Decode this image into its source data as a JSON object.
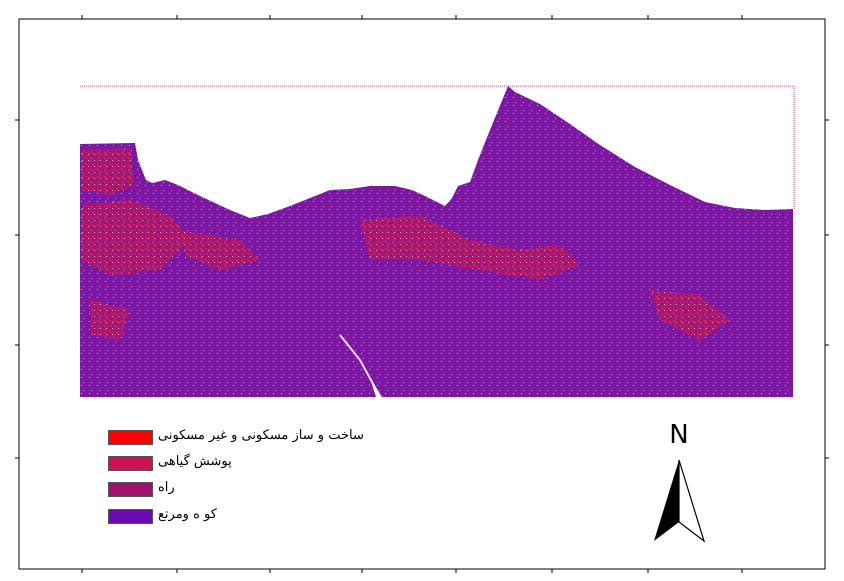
{
  "legend": {
    "items": [
      {
        "label": "ساخت و ساز مسکونی و غیر مسکونی",
        "color": "#ff0000"
      },
      {
        "label": "پوشش گیاهی",
        "color": "#cc1155"
      },
      {
        "label": "راه",
        "color": "#a0106e"
      },
      {
        "label": "کو ه ومرتع",
        "color": "#6a0ab0"
      }
    ]
  },
  "north_arrow": {
    "letter": "N"
  },
  "colors": {
    "frame": "#000000",
    "background": "#ffffff",
    "raster_base": "#7a18a6"
  },
  "icons": [
    "north-arrow-icon"
  ]
}
